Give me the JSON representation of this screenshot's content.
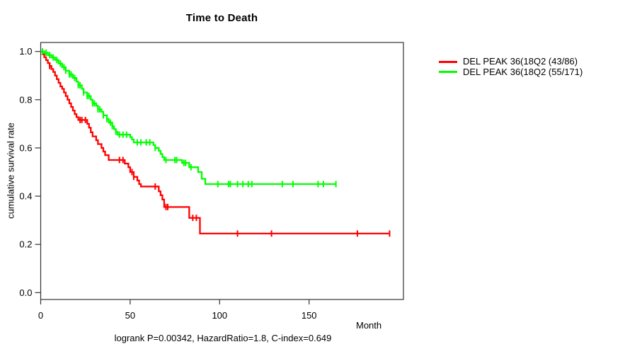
{
  "chart_data": {
    "type": "line",
    "subtype": "kaplan_meier_step",
    "title": "Time to Death",
    "xlabel": "Month",
    "ylabel": "cumulative survival rate",
    "caption": "logrank P=0.00342, HazardRatio=1.8, C-index=0.649",
    "xticks": [
      0,
      50,
      100,
      150
    ],
    "yticks": [
      0.0,
      0.2,
      0.4,
      0.6,
      0.8,
      1.0
    ],
    "xlim": [
      0,
      202
    ],
    "ylim": [
      0,
      1
    ],
    "grid": false,
    "legend_position": "right-outside",
    "frame_color": "#333333",
    "series": [
      {
        "name": "DEL PEAK 36(18Q2 (43/86)",
        "color": "#ff0000",
        "end_month": 195,
        "steps": [
          [
            0,
            1.0
          ],
          [
            1,
            0.988
          ],
          [
            2,
            0.976
          ],
          [
            3,
            0.964
          ],
          [
            4,
            0.952
          ],
          [
            5,
            0.94
          ],
          [
            6,
            0.927
          ],
          [
            7,
            0.915
          ],
          [
            8,
            0.9
          ],
          [
            9,
            0.885
          ],
          [
            10,
            0.87
          ],
          [
            11,
            0.855
          ],
          [
            12,
            0.845
          ],
          [
            13,
            0.83
          ],
          [
            14,
            0.815
          ],
          [
            15,
            0.8
          ],
          [
            16,
            0.785
          ],
          [
            17,
            0.77
          ],
          [
            18,
            0.755
          ],
          [
            19,
            0.74
          ],
          [
            20,
            0.728
          ],
          [
            21,
            0.716
          ],
          [
            26,
            0.7
          ],
          [
            27,
            0.684
          ],
          [
            28,
            0.665
          ],
          [
            29,
            0.648
          ],
          [
            31,
            0.632
          ],
          [
            32,
            0.616
          ],
          [
            34,
            0.6
          ],
          [
            35,
            0.585
          ],
          [
            36,
            0.57
          ],
          [
            38,
            0.55
          ],
          [
            47,
            0.535
          ],
          [
            49,
            0.52
          ],
          [
            50,
            0.5
          ],
          [
            52,
            0.48
          ],
          [
            54,
            0.465
          ],
          [
            55,
            0.45
          ],
          [
            56,
            0.44
          ],
          [
            66,
            0.42
          ],
          [
            67,
            0.404
          ],
          [
            68,
            0.386
          ],
          [
            69,
            0.355
          ],
          [
            83,
            0.31
          ],
          [
            89,
            0.245
          ]
        ],
        "censor_months": [
          5,
          22,
          23,
          25,
          44,
          46,
          51,
          52,
          64,
          70,
          71,
          85,
          87,
          110,
          129,
          177,
          195
        ]
      },
      {
        "name": "DEL PEAK 36(18Q2 (55/171)",
        "color": "#00ff00",
        "end_month": 165,
        "steps": [
          [
            0,
            1.0
          ],
          [
            2,
            0.995
          ],
          [
            4,
            0.985
          ],
          [
            6,
            0.975
          ],
          [
            8,
            0.965
          ],
          [
            10,
            0.95
          ],
          [
            12,
            0.935
          ],
          [
            14,
            0.92
          ],
          [
            16,
            0.905
          ],
          [
            18,
            0.89
          ],
          [
            20,
            0.875
          ],
          [
            21,
            0.86
          ],
          [
            23,
            0.845
          ],
          [
            24,
            0.83
          ],
          [
            26,
            0.815
          ],
          [
            28,
            0.8
          ],
          [
            29,
            0.785
          ],
          [
            31,
            0.775
          ],
          [
            32,
            0.76
          ],
          [
            34,
            0.75
          ],
          [
            35,
            0.735
          ],
          [
            37,
            0.72
          ],
          [
            38,
            0.705
          ],
          [
            40,
            0.69
          ],
          [
            41,
            0.678
          ],
          [
            42,
            0.667
          ],
          [
            43,
            0.655
          ],
          [
            50,
            0.645
          ],
          [
            51,
            0.635
          ],
          [
            52,
            0.623
          ],
          [
            63,
            0.612
          ],
          [
            64,
            0.6
          ],
          [
            66,
            0.588
          ],
          [
            67,
            0.575
          ],
          [
            68,
            0.562
          ],
          [
            69,
            0.55
          ],
          [
            79,
            0.538
          ],
          [
            83,
            0.52
          ],
          [
            88,
            0.5
          ],
          [
            90,
            0.472
          ],
          [
            92,
            0.45
          ]
        ],
        "censor_months": [
          1,
          3,
          5,
          7,
          9,
          11,
          13,
          14,
          16,
          17,
          19,
          21,
          22,
          24,
          26,
          27,
          29,
          30,
          32,
          33,
          35,
          37,
          39,
          40,
          42,
          44,
          46,
          48,
          54,
          56,
          59,
          61,
          64,
          70,
          75,
          76,
          80,
          81,
          84,
          99,
          105,
          106,
          110,
          113,
          116,
          118,
          135,
          141,
          155,
          158,
          165
        ]
      }
    ]
  }
}
